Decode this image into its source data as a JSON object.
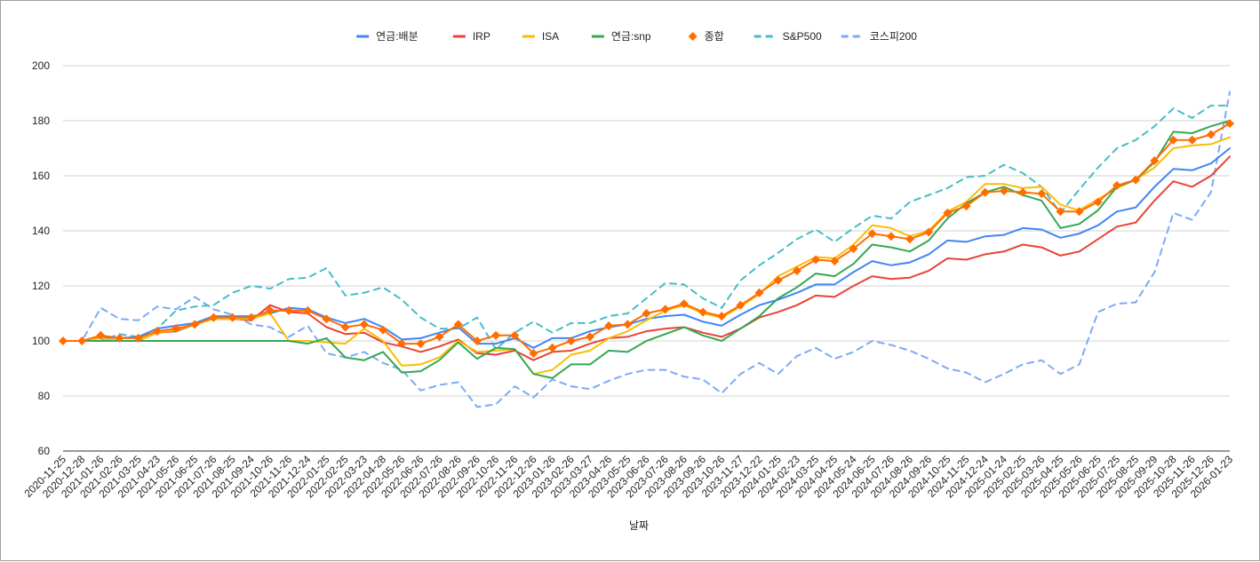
{
  "chart_data": {
    "type": "line",
    "title": "",
    "xlabel": "날짜",
    "ylabel": "",
    "ylim": [
      60,
      200
    ],
    "yticks": [
      60,
      80,
      100,
      120,
      140,
      160,
      180,
      200
    ],
    "grid": true,
    "legend_position": "top-center",
    "x_labels": [
      "2020-11-25",
      "2020-12-28",
      "2021-01-26",
      "2021-02-26",
      "2021-03-25",
      "2021-04-23",
      "2021-05-26",
      "2021-06-25",
      "2021-07-26",
      "2021-08-25",
      "2021-09-24",
      "2021-10-26",
      "2021-11-26",
      "2021-12-24",
      "2022-01-25",
      "2022-02-25",
      "2022-03-23",
      "2022-04-28",
      "2022-05-26",
      "2022-06-26",
      "2022-07-26",
      "2022-08-26",
      "2022-09-26",
      "2022-10-26",
      "2022-11-26",
      "2022-12-26",
      "2023-01-26",
      "2023-02-26",
      "2023-03-27",
      "2023-04-26",
      "2023-05-25",
      "2023-06-26",
      "2023-07-26",
      "2023-08-26",
      "2023-09-26",
      "2023-10-26",
      "2023-11-27",
      "2023-12-22",
      "2024-01-25",
      "2024-02-23",
      "2024-03-25",
      "2024-04-25",
      "2024-05-24",
      "2024-06-25",
      "2024-07-26",
      "2024-08-26",
      "2024-09-26",
      "2024-10-25",
      "2024-11-25",
      "2024-12-24",
      "2025-01-24",
      "2025-02-25",
      "2025-03-26",
      "2025-04-25",
      "2025-05-26",
      "2025-06-25",
      "2025-07-25",
      "2025-08-25",
      "2025-09-29",
      "2025-10-28",
      "2025-11-26",
      "2025-12-26",
      "2026-01-23"
    ],
    "series": [
      {
        "name": "연금:배분",
        "color": "#4285f4",
        "style": "solid",
        "marker": "none",
        "values": [
          100,
          100,
          101.5,
          101,
          101.5,
          104.5,
          105.5,
          106.5,
          109,
          109,
          109,
          110,
          112,
          111.5,
          108.5,
          106.5,
          108,
          105,
          100.5,
          101,
          103,
          105,
          99,
          99,
          101,
          97.5,
          101,
          101,
          103.5,
          105,
          106,
          108,
          109,
          109.5,
          107,
          105.5,
          109.5,
          113,
          115,
          117.5,
          120.5,
          120.5,
          125,
          129,
          127.5,
          128.5,
          131.5,
          136.5,
          136,
          138,
          138.5,
          141,
          140.5,
          137.5,
          139,
          142,
          147,
          148.5,
          156,
          162.5,
          162,
          164.5,
          170
        ]
      },
      {
        "name": "IRP",
        "color": "#ea4335",
        "style": "solid",
        "marker": "none",
        "values": [
          100,
          100,
          101,
          100,
          100,
          103,
          103.5,
          106,
          108,
          108,
          107.5,
          113,
          110.5,
          110,
          105,
          102.5,
          103,
          99.5,
          98,
          96,
          98,
          100.5,
          95.5,
          95,
          96.5,
          93,
          96,
          96.5,
          99,
          101,
          101.5,
          103.5,
          104.5,
          105,
          103,
          101.5,
          104.5,
          108.5,
          110.5,
          113,
          116.5,
          116,
          120,
          123.5,
          122.5,
          123,
          125.5,
          130,
          129.5,
          131.5,
          132.5,
          135,
          134,
          131,
          132.5,
          137,
          141.5,
          143,
          151,
          158,
          156,
          160,
          167
        ]
      },
      {
        "name": "ISA",
        "color": "#fbbc04",
        "style": "solid",
        "marker": "none",
        "values": [
          100,
          100,
          101,
          100,
          100,
          103,
          104,
          106,
          108,
          108,
          108,
          110,
          100,
          100,
          99.5,
          99,
          104.5,
          100,
          91,
          91.5,
          94,
          100,
          96,
          96.5,
          97,
          88,
          89.5,
          95,
          96.5,
          101,
          103.5,
          107.5,
          111,
          113,
          110,
          108.5,
          112.5,
          117,
          123.5,
          127,
          130.5,
          130,
          135,
          142,
          141,
          138,
          140,
          147,
          150.5,
          157,
          157,
          155.5,
          156,
          149.5,
          147.5,
          151.5,
          155.5,
          158.5,
          163,
          170,
          171,
          171.5,
          174
        ]
      },
      {
        "name": "연금:snp",
        "color": "#34a853",
        "style": "solid",
        "marker": "none",
        "values": [
          100,
          100,
          100,
          100,
          100,
          100,
          100,
          100,
          100,
          100,
          100,
          100,
          100,
          99,
          101,
          94,
          93,
          96,
          88.5,
          89,
          93,
          99.5,
          93.5,
          97.5,
          97,
          88,
          86.5,
          91.5,
          91.5,
          96.5,
          96,
          100,
          102.5,
          105,
          102,
          100,
          104.5,
          109,
          115.5,
          119.5,
          124.5,
          123.5,
          128,
          135,
          134,
          132.5,
          136.5,
          144.5,
          150,
          154,
          156,
          153,
          151,
          141,
          142.5,
          147.5,
          156,
          158.5,
          165,
          176,
          175.5,
          178,
          180
        ]
      },
      {
        "name": "종합",
        "color": "#ff6d01",
        "style": "solid",
        "marker": "diamond",
        "values": [
          100,
          100,
          102,
          101,
          101,
          103.5,
          104.5,
          106,
          108.5,
          108.5,
          108.5,
          111,
          111,
          111,
          108,
          105,
          106,
          104,
          99,
          99,
          101.5,
          106,
          100,
          102,
          102,
          95.5,
          97.5,
          100,
          101.5,
          105.5,
          106,
          110,
          111.5,
          113.5,
          110.5,
          109,
          113,
          117.5,
          122,
          125.5,
          129.5,
          129,
          133.5,
          139,
          138,
          137,
          139.5,
          146.5,
          149,
          154,
          154.5,
          154,
          153.5,
          147,
          147,
          150.5,
          156.5,
          158.5,
          165.5,
          173,
          173,
          175,
          179
        ]
      },
      {
        "name": "S&P500",
        "color": "#46bdc6",
        "style": "dashed",
        "marker": "none",
        "values": [
          100,
          100,
          100,
          102.5,
          101.5,
          104.5,
          111,
          112.5,
          113,
          117.5,
          120,
          119,
          122.5,
          123,
          126.5,
          116.5,
          117.5,
          119.5,
          115,
          108.5,
          104.5,
          104.5,
          108.5,
          97,
          103,
          107,
          103,
          106.5,
          106.5,
          109,
          110,
          115.5,
          121,
          120.5,
          115.5,
          112,
          122,
          127.5,
          132,
          137,
          140.5,
          136,
          141,
          145.5,
          144.5,
          150.5,
          153,
          155.5,
          159.5,
          160,
          164,
          161,
          156,
          146.5,
          155,
          163,
          170,
          173,
          178,
          184.5,
          181,
          185.5,
          185.5
        ]
      },
      {
        "name": "코스피200",
        "color": "#7baaf7",
        "style": "dashed",
        "marker": "none",
        "values": [
          100,
          100,
          112,
          108,
          107.5,
          112.5,
          111.5,
          116,
          111.5,
          109.5,
          106,
          105,
          101.5,
          105.5,
          95.5,
          94,
          96,
          92,
          89.5,
          82,
          84,
          85,
          76,
          77,
          83.5,
          79.5,
          86,
          83.5,
          82.5,
          85.5,
          88,
          89.5,
          89.5,
          87,
          86,
          81,
          88,
          92,
          88,
          94.5,
          97.5,
          93.5,
          96,
          100,
          98.5,
          96.5,
          93.5,
          90,
          88.5,
          85,
          88,
          91.5,
          93,
          88,
          91.5,
          110.5,
          113.5,
          114,
          125,
          146.5,
          144,
          154,
          190.5
        ]
      }
    ]
  }
}
